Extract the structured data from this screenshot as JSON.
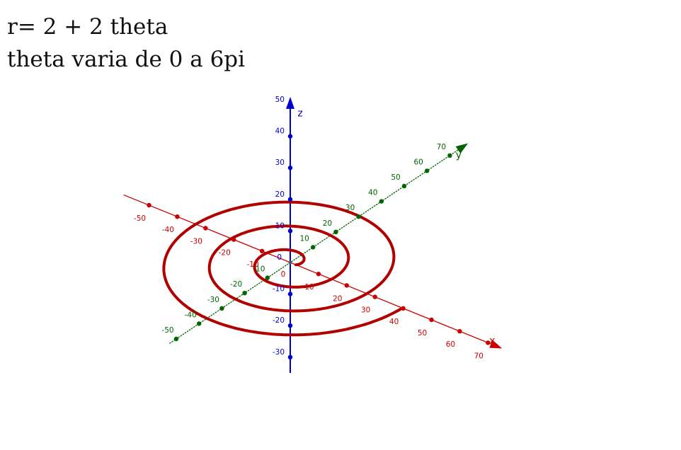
{
  "caption": {
    "line1": "r= 2 + 2 theta",
    "line2": "theta varia de 0 a 6pi"
  },
  "chart_data": {
    "type": "3d-parametric-curve",
    "equation": "r = 2 + 2θ",
    "theta_range": [
      0,
      18.85
    ],
    "curve_color": "#b00000",
    "axes": {
      "x": {
        "label": "x",
        "color": "#cc0000",
        "ticks": [
          -50,
          -40,
          -30,
          -20,
          -10,
          10,
          20,
          30,
          40,
          50,
          60,
          70
        ]
      },
      "y": {
        "label": "y",
        "color": "#006400",
        "ticks": [
          -50,
          -40,
          -30,
          -20,
          -10,
          10,
          20,
          30,
          40,
          50,
          60,
          70
        ]
      },
      "z": {
        "label": "z",
        "color": "#0000cc",
        "ticks": [
          -30,
          -20,
          -10,
          10,
          20,
          30,
          40,
          50
        ]
      }
    },
    "origin_label": "0"
  }
}
